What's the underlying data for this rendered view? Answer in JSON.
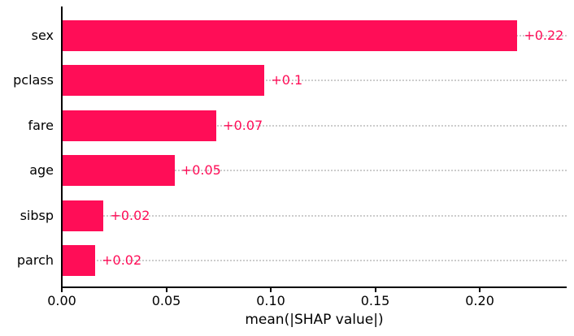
{
  "chart_data": {
    "type": "bar",
    "orientation": "horizontal",
    "title": "",
    "xlabel": "mean(|SHAP value|)",
    "ylabel": "",
    "categories": [
      "sex",
      "pclass",
      "fare",
      "age",
      "sibsp",
      "parch"
    ],
    "values": [
      0.218,
      0.097,
      0.074,
      0.054,
      0.02,
      0.016
    ],
    "bar_labels": [
      "+0.22",
      "+0.1",
      "+0.07",
      "+0.05",
      "+0.02",
      "+0.02"
    ],
    "xlim": [
      0,
      0.2416
    ],
    "xticks": [
      0.0,
      0.05,
      0.1,
      0.15,
      0.2
    ],
    "xtick_labels": [
      "0.00",
      "0.05",
      "0.10",
      "0.15",
      "0.20"
    ],
    "grid": "horizontal-dotted",
    "legend_position": "none",
    "bar_color": "#ff0d57",
    "label_color": "#ff0d57",
    "gridline_color": "#cccccc",
    "axis_color": "#000000",
    "background_color": "#ffffff"
  }
}
